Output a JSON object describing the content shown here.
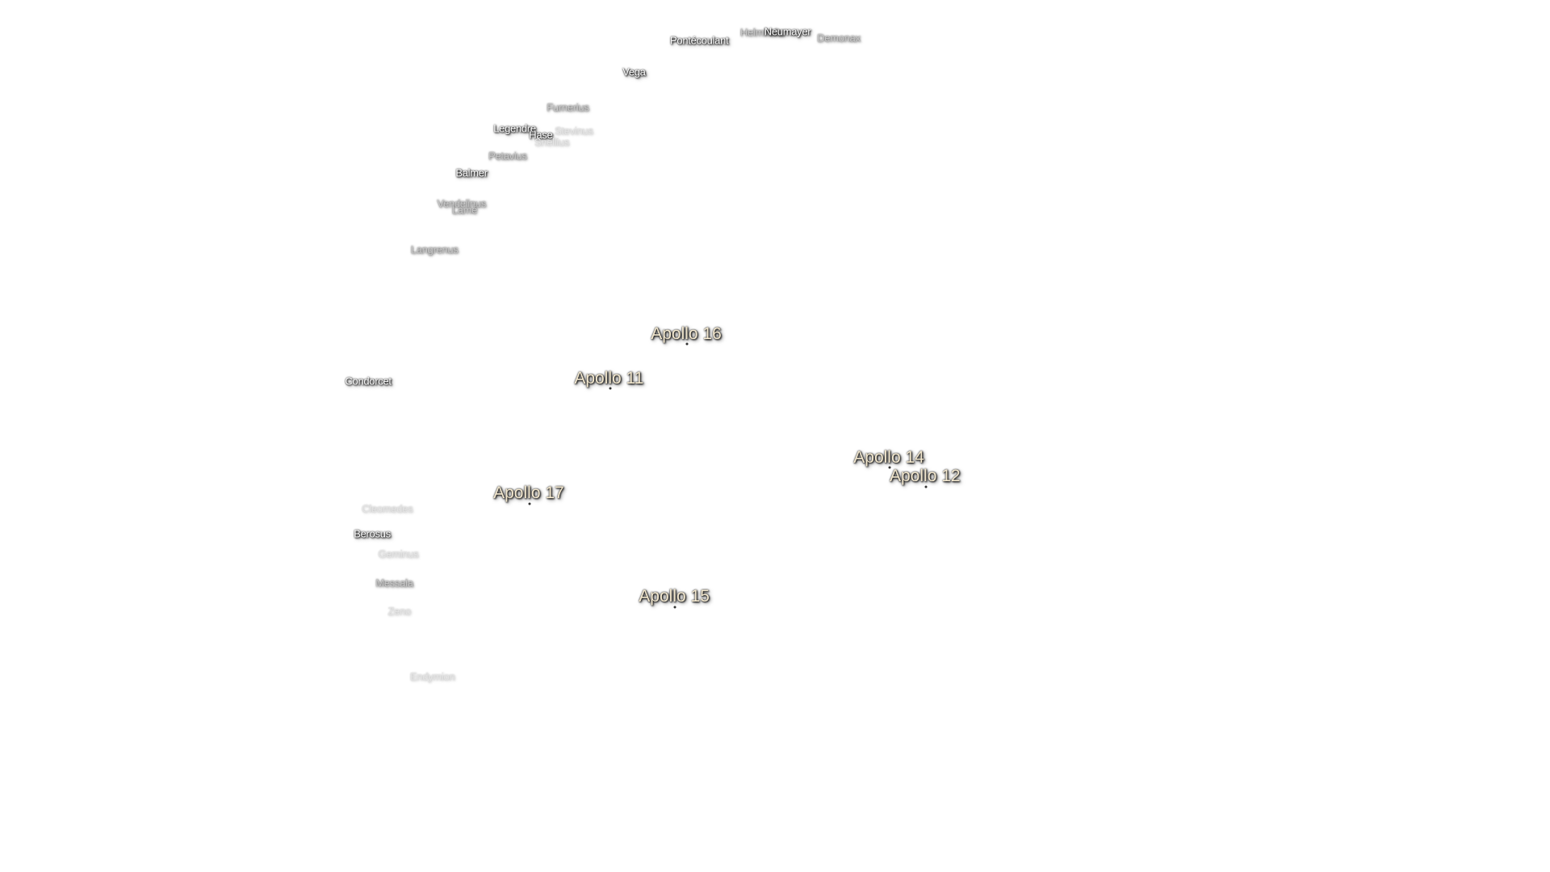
{
  "landing_sites": [
    "Apollo 16",
    "Apollo 11",
    "Apollo 14",
    "Apollo 12",
    "Apollo 17",
    "Apollo 15"
  ],
  "craters": [
    "Pontécoulant",
    "Helmholtz",
    "Neumayer",
    "Demonax",
    "Vega",
    "Furnerius",
    "Legendre",
    "Hase",
    "Stevinus",
    "Snellius",
    "Petavius",
    "Balmer",
    "Vendelinus",
    "Lamé",
    "Langrenus",
    "Condorcet",
    "Cleomedes",
    "Berosus",
    "Geminus",
    "Messala",
    "Zeno",
    "Endymion"
  ]
}
